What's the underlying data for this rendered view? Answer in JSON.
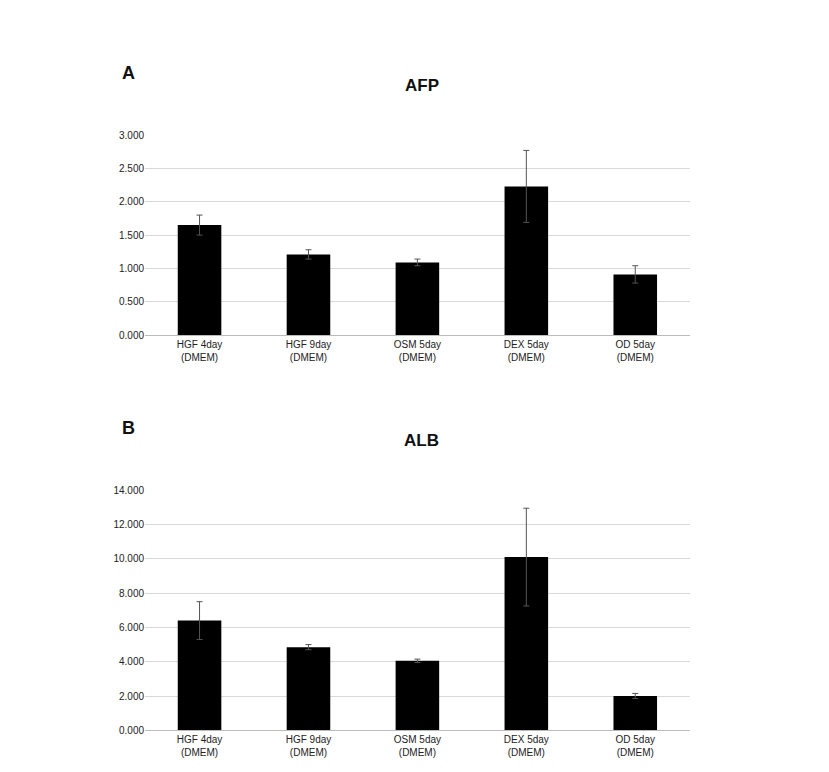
{
  "chart_data": [
    {
      "type": "bar",
      "panel_label": "A",
      "title": "AFP",
      "categories": [
        "HGF 4day\n(DMEM)",
        "HGF 9day\n(DMEM)",
        "OSM 5day\n(DMEM)",
        "DEX 5day\n(DMEM)",
        "OD 5day\n(DMEM)"
      ],
      "values": [
        1.65,
        1.21,
        1.09,
        2.23,
        0.91
      ],
      "errors": [
        0.15,
        0.07,
        0.05,
        0.54,
        0.13
      ],
      "color": "#000000",
      "ylim": [
        0,
        3
      ],
      "yticks": [
        {
          "value": 0,
          "label": "0.000"
        },
        {
          "value": 0.5,
          "label": "0.500"
        },
        {
          "value": 1,
          "label": "1.000"
        },
        {
          "value": 1.5,
          "label": "1.500"
        },
        {
          "value": 2,
          "label": "2.000"
        },
        {
          "value": 2.5,
          "label": "2.500"
        },
        {
          "value": 3,
          "label": "3.000"
        }
      ],
      "grid": true
    },
    {
      "type": "bar",
      "panel_label": "B",
      "title": "ALB",
      "categories": [
        "HGF 4day\n(DMEM)",
        "HGF 9day\n(DMEM)",
        "OSM 5day\n(DMEM)",
        "DEX 5day\n(DMEM)",
        "OD 5day\n(DMEM)"
      ],
      "values": [
        6.4,
        4.85,
        4.05,
        10.1,
        2.0
      ],
      "errors": [
        1.1,
        0.15,
        0.1,
        2.85,
        0.15
      ],
      "color": "#000000",
      "ylim": [
        0,
        14
      ],
      "yticks": [
        {
          "value": 0,
          "label": "0.000"
        },
        {
          "value": 2,
          "label": "2.000"
        },
        {
          "value": 4,
          "label": "4.000"
        },
        {
          "value": 6,
          "label": "6.000"
        },
        {
          "value": 8,
          "label": "8.000"
        },
        {
          "value": 10,
          "label": "10.000"
        },
        {
          "value": 12,
          "label": "12.000"
        },
        {
          "value": 14,
          "label": "14.000"
        }
      ],
      "grid": true
    }
  ]
}
